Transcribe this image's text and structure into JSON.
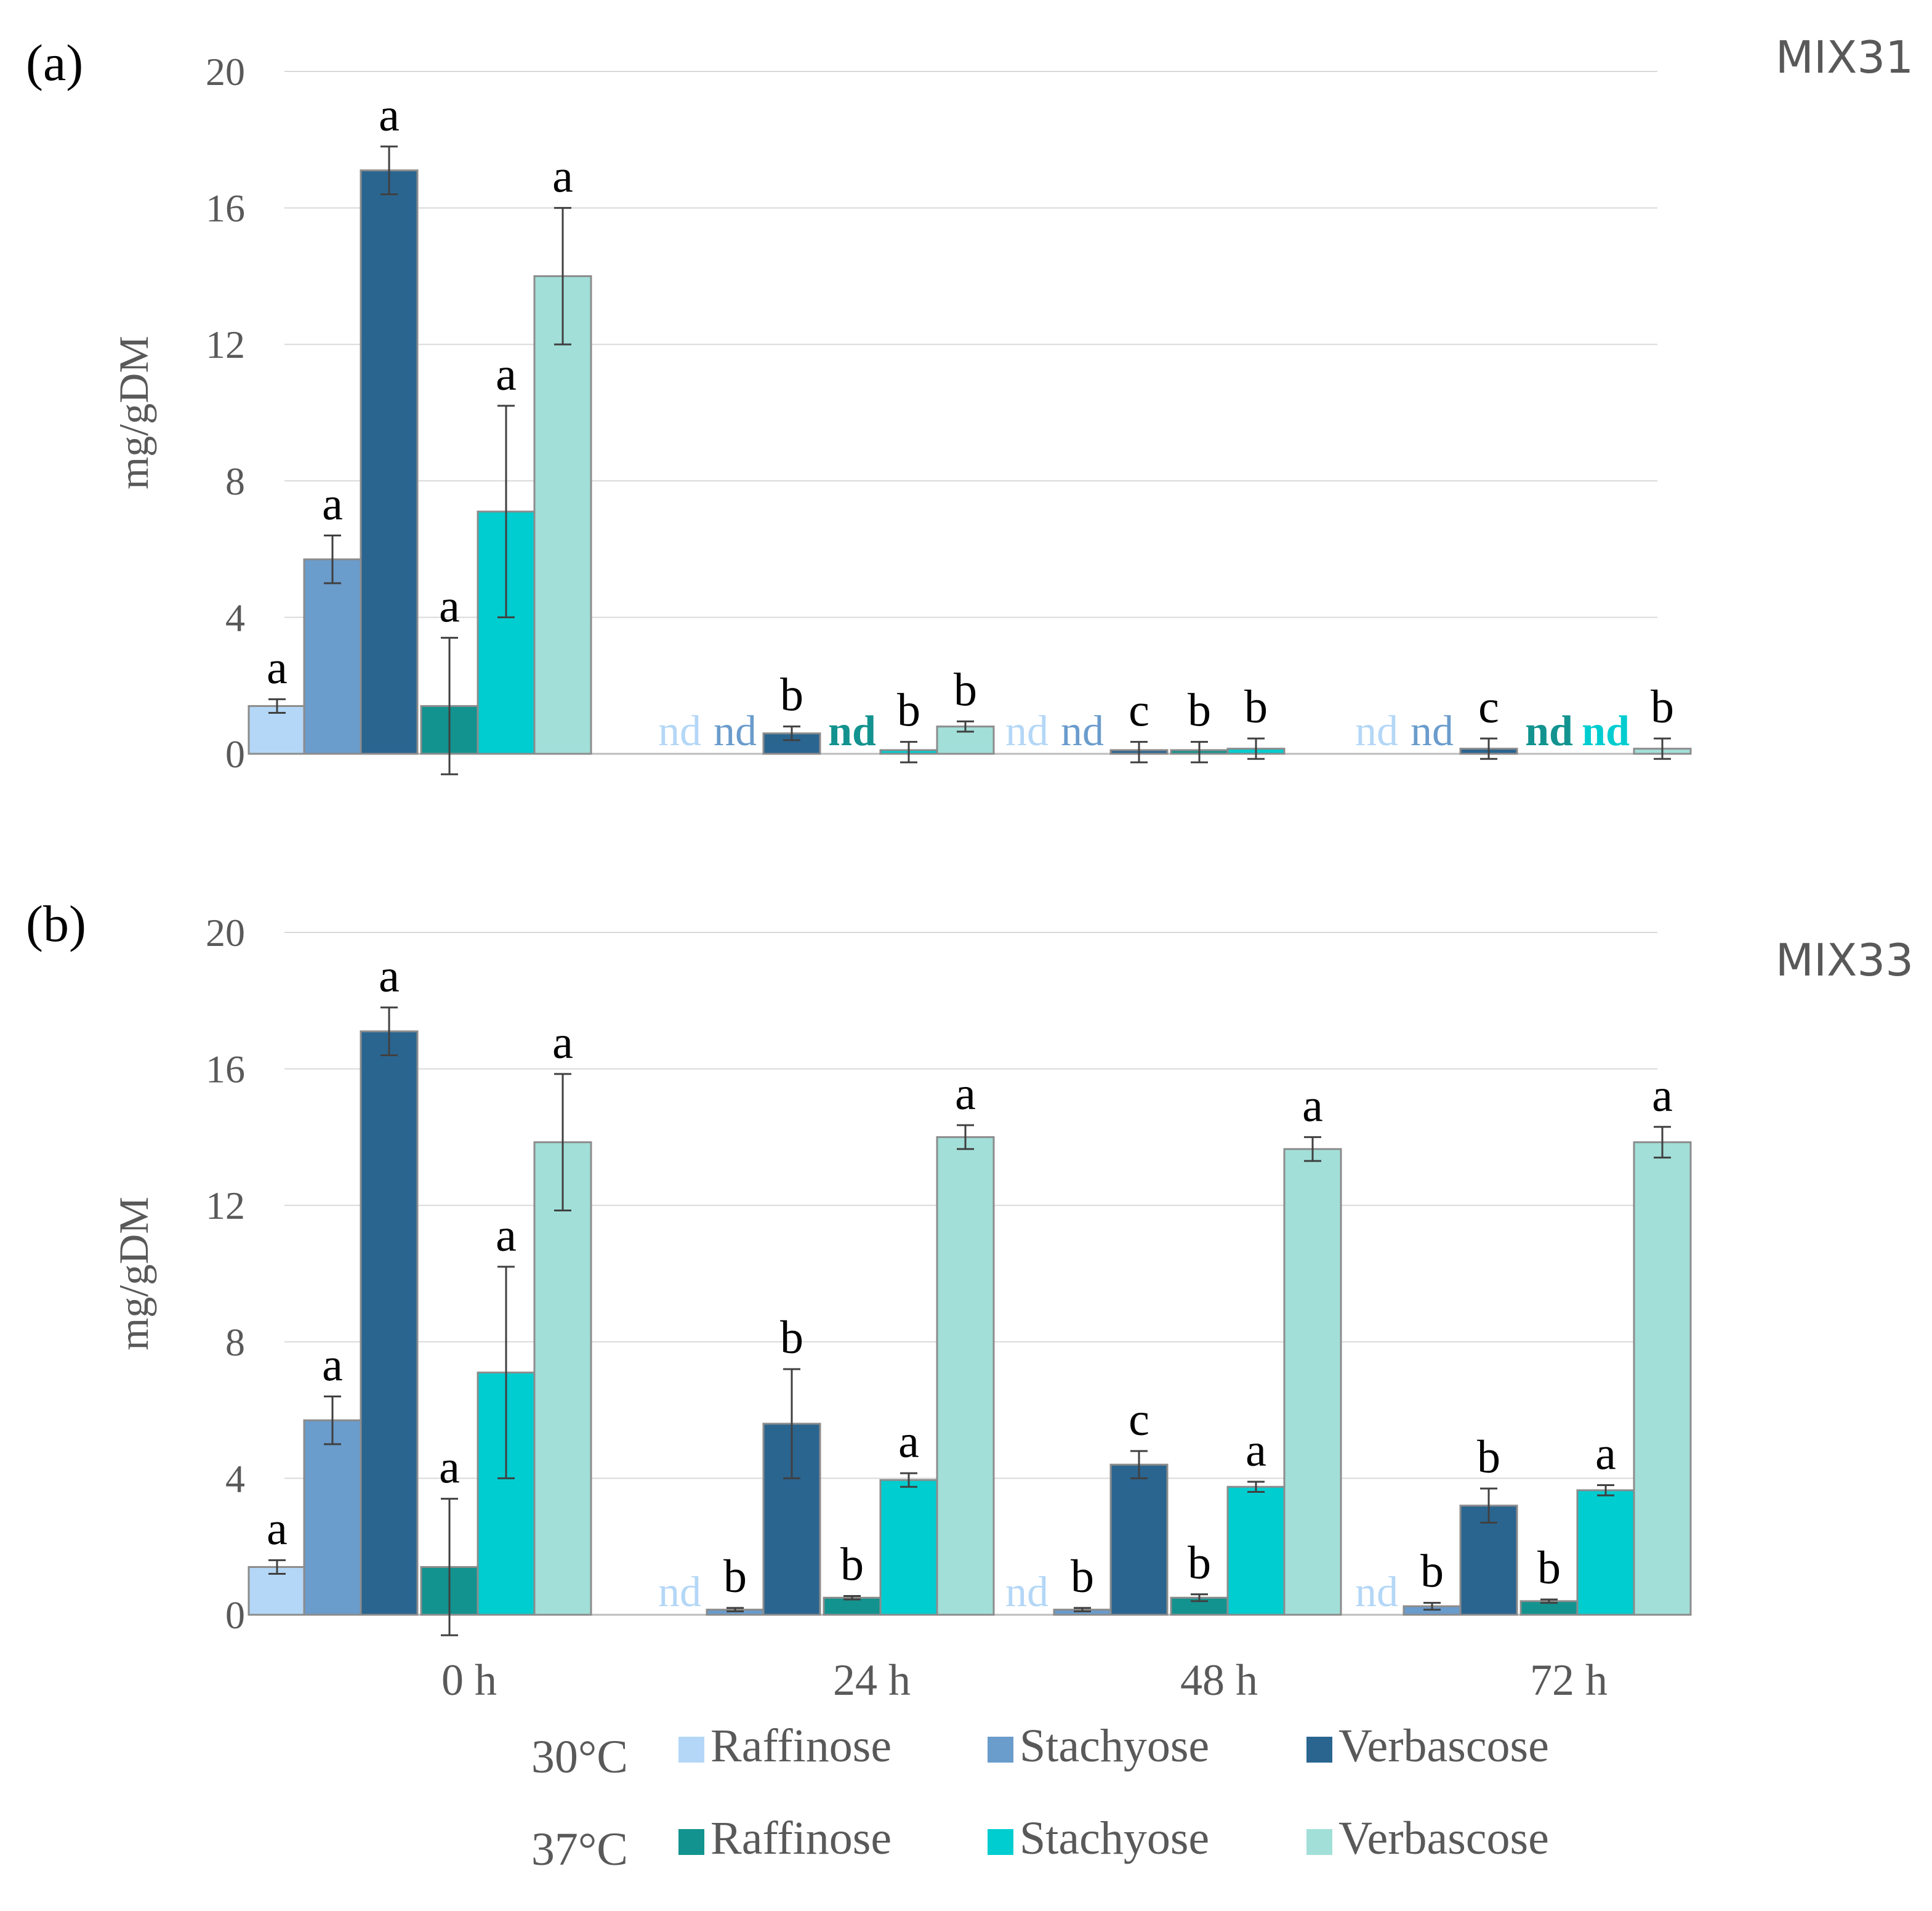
{
  "figure": {
    "legend": {
      "row_labels": [
        "30°C",
        "37°C"
      ],
      "entries": [
        {
          "row": 0,
          "name": "Raffinose",
          "color": "#b4d7f7"
        },
        {
          "row": 0,
          "name": "Stachyose",
          "color": "#6a9ccc"
        },
        {
          "row": 0,
          "name": "Verbascose",
          "color": "#2a6590"
        },
        {
          "row": 1,
          "name": "Raffinose",
          "color": "#13938f"
        },
        {
          "row": 1,
          "name": "Stachyose",
          "color": "#00cdd0"
        },
        {
          "row": 1,
          "name": "Verbascose",
          "color": "#a2dfd9"
        }
      ]
    }
  },
  "chart_data": [
    {
      "type": "bar",
      "panel": "(a)",
      "title": "MIX31",
      "ylabel": "mg/gDM",
      "xlabel": "",
      "categories": [
        "0 h",
        "24 h",
        "48 h",
        "72 h"
      ],
      "ylim": [
        0,
        20
      ],
      "yticks": [
        0,
        4,
        8,
        12,
        16,
        20
      ],
      "grid": true,
      "series": [
        {
          "name": "Raffinose 30°C",
          "color": "#b4d7f7",
          "values": [
            1.4,
            null,
            null,
            null
          ],
          "errors": [
            0.2,
            null,
            null,
            null
          ],
          "labels": [
            "a",
            "nd",
            "nd",
            "nd"
          ]
        },
        {
          "name": "Stachyose 30°C",
          "color": "#6a9ccc",
          "values": [
            5.7,
            null,
            null,
            null
          ],
          "errors": [
            0.7,
            null,
            null,
            null
          ],
          "labels": [
            "a",
            "nd",
            "nd",
            "nd"
          ]
        },
        {
          "name": "Verbascose 30°C",
          "color": "#2a6590",
          "values": [
            17.1,
            0.6,
            0.05,
            0.15
          ],
          "errors": [
            0.7,
            0.2,
            0.3,
            0.3
          ],
          "labels": [
            "a",
            "b",
            "c",
            "c"
          ]
        },
        {
          "name": "Raffinose 37°C",
          "color": "#13938f",
          "values": [
            1.4,
            null,
            0.05,
            null
          ],
          "errors": [
            2.0,
            null,
            0.3,
            null
          ],
          "labels": [
            "a",
            "nd",
            "b",
            "nd"
          ]
        },
        {
          "name": "Stachyose 37°C",
          "color": "#00cdd0",
          "values": [
            7.1,
            0.05,
            0.15,
            null
          ],
          "errors": [
            3.1,
            0.3,
            0.3,
            null
          ],
          "labels": [
            "a",
            "b",
            "b",
            "nd"
          ]
        },
        {
          "name": "Verbascose 37°C",
          "color": "#a2dfd9",
          "values": [
            14.0,
            0.8,
            null,
            0.15
          ],
          "errors": [
            2.0,
            0.15,
            null,
            0.3
          ],
          "labels": [
            "a",
            "b",
            "",
            "b"
          ]
        }
      ]
    },
    {
      "type": "bar",
      "panel": "(b)",
      "title": "MIX33",
      "ylabel": "mg/gDM",
      "xlabel": "",
      "categories": [
        "0 h",
        "24 h",
        "48 h",
        "72 h"
      ],
      "ylim": [
        0,
        20
      ],
      "yticks": [
        0,
        4,
        8,
        12,
        16,
        20
      ],
      "grid": true,
      "series": [
        {
          "name": "Raffinose 30°C",
          "color": "#b4d7f7",
          "values": [
            1.4,
            null,
            null,
            null
          ],
          "errors": [
            0.2,
            null,
            null,
            null
          ],
          "labels": [
            "a",
            "nd",
            "nd",
            "nd"
          ]
        },
        {
          "name": "Stachyose 30°C",
          "color": "#6a9ccc",
          "values": [
            5.7,
            0.15,
            0.15,
            0.25
          ],
          "errors": [
            0.7,
            0.05,
            0.05,
            0.1
          ],
          "labels": [
            "a",
            "b",
            "b",
            "b"
          ]
        },
        {
          "name": "Verbascose 30°C",
          "color": "#2a6590",
          "values": [
            17.1,
            5.6,
            4.4,
            3.2
          ],
          "errors": [
            0.7,
            1.6,
            0.4,
            0.5
          ],
          "labels": [
            "a",
            "b",
            "c",
            "b"
          ]
        },
        {
          "name": "Raffinose 37°C",
          "color": "#13938f",
          "values": [
            1.4,
            0.5,
            0.5,
            0.4
          ],
          "errors": [
            2.0,
            0.05,
            0.1,
            0.05
          ],
          "labels": [
            "a",
            "b",
            "b",
            "b"
          ]
        },
        {
          "name": "Stachyose 37°C",
          "color": "#00cdd0",
          "values": [
            7.1,
            3.95,
            3.75,
            3.65
          ],
          "errors": [
            3.1,
            0.2,
            0.15,
            0.15
          ],
          "labels": [
            "a",
            "a",
            "a",
            "a"
          ]
        },
        {
          "name": "Verbascose 37°C",
          "color": "#a2dfd9",
          "values": [
            13.85,
            14.0,
            13.65,
            13.85
          ],
          "errors": [
            2.0,
            0.35,
            0.35,
            0.45
          ],
          "labels": [
            "a",
            "a",
            "a",
            "a"
          ]
        }
      ]
    }
  ]
}
